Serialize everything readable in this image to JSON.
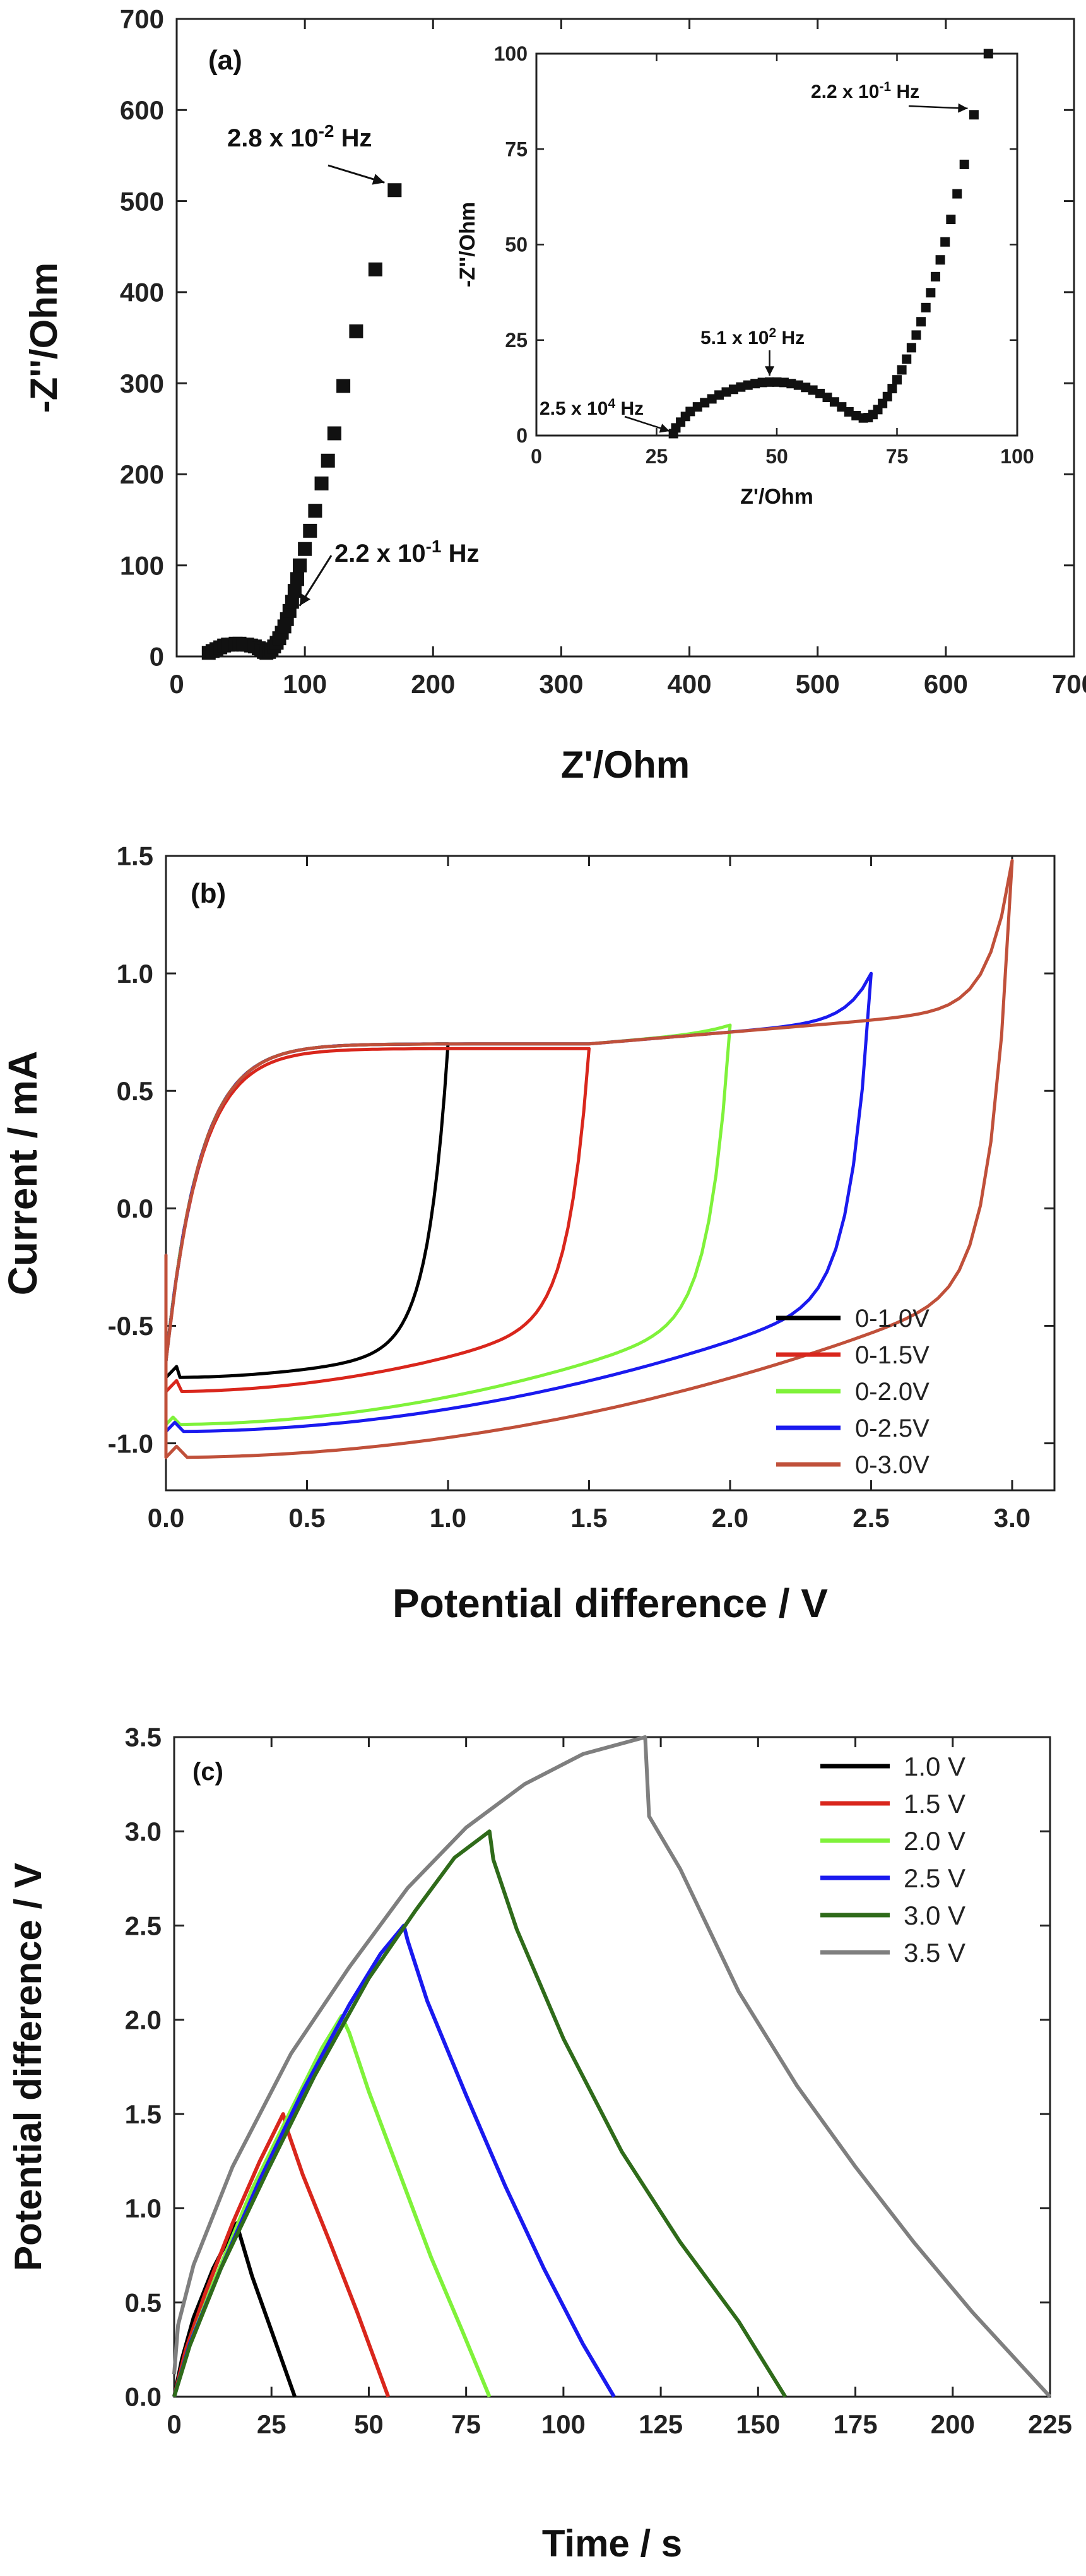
{
  "chart_data": [
    {
      "id": "a",
      "type": "scatter",
      "panel_label": "(a)",
      "xlabel": "Z'/Ohm",
      "ylabel": "-Z''/Ohm",
      "xlim": [
        0,
        700
      ],
      "ylim": [
        0,
        700
      ],
      "xticks": [
        "0",
        "100",
        "200",
        "300",
        "400",
        "500",
        "600",
        "700"
      ],
      "yticks": [
        "0",
        "100",
        "200",
        "300",
        "400",
        "500",
        "600",
        "700"
      ],
      "marker": "square",
      "points": [
        [
          25,
          4
        ],
        [
          28,
          6
        ],
        [
          31,
          8
        ],
        [
          34,
          10
        ],
        [
          37,
          12
        ],
        [
          40,
          13
        ],
        [
          43,
          13
        ],
        [
          46,
          14
        ],
        [
          49,
          14
        ],
        [
          52,
          13
        ],
        [
          55,
          13
        ],
        [
          58,
          12
        ],
        [
          61,
          11
        ],
        [
          64,
          9
        ],
        [
          66,
          7
        ],
        [
          68,
          5
        ],
        [
          70,
          4
        ],
        [
          72,
          5
        ],
        [
          74,
          8
        ],
        [
          76,
          11
        ],
        [
          78,
          15
        ],
        [
          80,
          20
        ],
        [
          82,
          26
        ],
        [
          84,
          33
        ],
        [
          86,
          41
        ],
        [
          88,
          50
        ],
        [
          90,
          60
        ],
        [
          92,
          72
        ],
        [
          94,
          85
        ],
        [
          96,
          100
        ],
        [
          100,
          118
        ],
        [
          104,
          138
        ],
        [
          108,
          160
        ],
        [
          113,
          190
        ],
        [
          118,
          215
        ],
        [
          123,
          245
        ],
        [
          130,
          297
        ],
        [
          140,
          357
        ],
        [
          155,
          425
        ],
        [
          170,
          512
        ]
      ],
      "annotations": [
        {
          "text": "2.8 x 10",
          "sup": "-2",
          "tail": " Hz",
          "point": [
            170,
            512
          ]
        },
        {
          "text": "2.2 x 10",
          "sup": "-1",
          "tail": " Hz",
          "point": [
            88,
            50
          ]
        }
      ],
      "inset": {
        "type": "scatter",
        "xlabel": "Z'/Ohm",
        "ylabel": "-Z''/Ohm",
        "xlim": [
          0,
          100
        ],
        "ylim": [
          0,
          100
        ],
        "xticks": [
          "0",
          "25",
          "50",
          "75",
          "100"
        ],
        "yticks": [
          "0",
          "25",
          "50",
          "75",
          "100"
        ],
        "points": [
          [
            28.5,
            0.5
          ],
          [
            29,
            2
          ],
          [
            30,
            3.5
          ],
          [
            31,
            5
          ],
          [
            32,
            6.3
          ],
          [
            33.5,
            7.5
          ],
          [
            35,
            8.6
          ],
          [
            36.5,
            9.6
          ],
          [
            38,
            10.6
          ],
          [
            39.5,
            11.4
          ],
          [
            41,
            12.1
          ],
          [
            42.5,
            12.7
          ],
          [
            44,
            13.2
          ],
          [
            45.5,
            13.6
          ],
          [
            47,
            13.9
          ],
          [
            48.5,
            14.0
          ],
          [
            50,
            14.0
          ],
          [
            51.5,
            13.9
          ],
          [
            53,
            13.6
          ],
          [
            54.5,
            13.2
          ],
          [
            56,
            12.6
          ],
          [
            57.5,
            11.9
          ],
          [
            59,
            11.0
          ],
          [
            60.5,
            10.0
          ],
          [
            62,
            8.8
          ],
          [
            63.5,
            7.5
          ],
          [
            65,
            6.2
          ],
          [
            66.5,
            5.2
          ],
          [
            68,
            4.6
          ],
          [
            69,
            4.7
          ],
          [
            70,
            5.5
          ],
          [
            71,
            6.8
          ],
          [
            72,
            8.4
          ],
          [
            73,
            10.2
          ],
          [
            74,
            12.3
          ],
          [
            75,
            14.6
          ],
          [
            76,
            17.2
          ],
          [
            77,
            20.0
          ],
          [
            78,
            23.0
          ],
          [
            79,
            26.3
          ],
          [
            80,
            29.8
          ],
          [
            81,
            33.5
          ],
          [
            82,
            37.4
          ],
          [
            83,
            41.6
          ],
          [
            84,
            46.0
          ],
          [
            85,
            50.7
          ],
          [
            86.2,
            56.6
          ],
          [
            87.5,
            63.3
          ],
          [
            89,
            71
          ],
          [
            91,
            84
          ],
          [
            94,
            100
          ]
        ],
        "annotations": [
          {
            "text": "2.2 x 10",
            "sup": "-1",
            "tail": " Hz",
            "point": [
              91,
              84
            ]
          },
          {
            "text": "5.1 x 10",
            "sup": "2",
            "tail": " Hz",
            "point": [
              48.5,
              14.0
            ]
          },
          {
            "text": "2.5 x 10",
            "sup": "4",
            "tail": " Hz",
            "point": [
              28.5,
              0.5
            ]
          }
        ]
      }
    },
    {
      "id": "b",
      "type": "line",
      "panel_label": "(b)",
      "xlabel": "Potential difference / V",
      "ylabel": "Current / mA",
      "xlim": [
        0,
        3.15
      ],
      "ylim": [
        -1.2,
        1.5
      ],
      "xticks": [
        "0.0",
        "0.5",
        "1.0",
        "1.5",
        "2.0",
        "2.5",
        "3.0"
      ],
      "yticks": [
        "-1.0",
        "-0.5",
        "0.0",
        "0.5",
        "1.0",
        "1.5"
      ],
      "legend_position": "bottom-right",
      "series": [
        {
          "name": "0-1.0V",
          "color": "#000000",
          "vmax": 1.0,
          "ipeak": 0.7,
          "ineg": -0.72,
          "irev": -0.58
        },
        {
          "name": "0-1.5V",
          "color": "#d9261c",
          "vmax": 1.5,
          "ipeak": 0.68,
          "ineg": -0.78,
          "irev": -0.45
        },
        {
          "name": "0-2.0V",
          "color": "#7ff23a",
          "vmax": 2.0,
          "ipeak": 0.78,
          "ineg": -0.92,
          "irev": -0.45
        },
        {
          "name": "0-2.5V",
          "color": "#1a1aef",
          "vmax": 2.5,
          "ipeak": 1.0,
          "ineg": -0.95,
          "irev": -0.35
        },
        {
          "name": "0-3.0V",
          "color": "#c0503a",
          "vmax": 3.0,
          "ipeak": 1.48,
          "ineg": -1.06,
          "irev": -0.3
        }
      ]
    },
    {
      "id": "c",
      "type": "line",
      "panel_label": "(c)",
      "xlabel": "Time / s",
      "ylabel": "Potential difference  / V",
      "xlim": [
        0,
        225
      ],
      "ylim": [
        0,
        3.5
      ],
      "xticks": [
        "0",
        "25",
        "50",
        "75",
        "100",
        "125",
        "150",
        "175",
        "200",
        "225"
      ],
      "yticks": [
        "0.0",
        "0.5",
        "1.0",
        "1.5",
        "2.0",
        "2.5",
        "3.0",
        "3.5"
      ],
      "legend_position": "top-right",
      "series": [
        {
          "name": "1.0 V",
          "color": "#000000",
          "points": [
            [
              0,
              0
            ],
            [
              2,
              0.2
            ],
            [
              5,
              0.42
            ],
            [
              10,
              0.68
            ],
            [
              16,
              0.92
            ],
            [
              17,
              0.85
            ],
            [
              20,
              0.64
            ],
            [
              25,
              0.35
            ],
            [
              31,
              0
            ]
          ]
        },
        {
          "name": "1.5 V",
          "color": "#d9261c",
          "points": [
            [
              0,
              0
            ],
            [
              3,
              0.25
            ],
            [
              8,
              0.55
            ],
            [
              15,
              0.92
            ],
            [
              22,
              1.25
            ],
            [
              28,
              1.5
            ],
            [
              29,
              1.42
            ],
            [
              33,
              1.18
            ],
            [
              40,
              0.82
            ],
            [
              47,
              0.45
            ],
            [
              55,
              0
            ]
          ]
        },
        {
          "name": "2.0 V",
          "color": "#7ff23a",
          "points": [
            [
              0,
              0
            ],
            [
              4,
              0.28
            ],
            [
              10,
              0.6
            ],
            [
              20,
              1.1
            ],
            [
              30,
              1.52
            ],
            [
              38,
              1.85
            ],
            [
              43,
              2.02
            ],
            [
              45,
              1.93
            ],
            [
              50,
              1.62
            ],
            [
              58,
              1.18
            ],
            [
              66,
              0.74
            ],
            [
              74,
              0.35
            ],
            [
              81,
              0
            ]
          ]
        },
        {
          "name": "2.5 V",
          "color": "#1a1aef",
          "points": [
            [
              0,
              0
            ],
            [
              4,
              0.28
            ],
            [
              12,
              0.68
            ],
            [
              22,
              1.15
            ],
            [
              33,
              1.62
            ],
            [
              45,
              2.08
            ],
            [
              53,
              2.35
            ],
            [
              59,
              2.5
            ],
            [
              60,
              2.42
            ],
            [
              65,
              2.1
            ],
            [
              75,
              1.6
            ],
            [
              85,
              1.12
            ],
            [
              95,
              0.68
            ],
            [
              105,
              0.28
            ],
            [
              113,
              0
            ]
          ]
        },
        {
          "name": "3.0 V",
          "color": "#2f6b1a",
          "points": [
            [
              0,
              0
            ],
            [
              4,
              0.27
            ],
            [
              12,
              0.68
            ],
            [
              24,
              1.2
            ],
            [
              36,
              1.7
            ],
            [
              50,
              2.22
            ],
            [
              62,
              2.58
            ],
            [
              72,
              2.86
            ],
            [
              81,
              3.0
            ],
            [
              82,
              2.85
            ],
            [
              88,
              2.48
            ],
            [
              100,
              1.9
            ],
            [
              115,
              1.3
            ],
            [
              130,
              0.82
            ],
            [
              145,
              0.4
            ],
            [
              157,
              0
            ]
          ]
        },
        {
          "name": "3.5 V",
          "color": "#7f7f7f",
          "points": [
            [
              0,
              0.12
            ],
            [
              1,
              0.38
            ],
            [
              5,
              0.7
            ],
            [
              15,
              1.22
            ],
            [
              30,
              1.82
            ],
            [
              45,
              2.28
            ],
            [
              60,
              2.7
            ],
            [
              75,
              3.02
            ],
            [
              90,
              3.25
            ],
            [
              105,
              3.41
            ],
            [
              121,
              3.5
            ],
            [
              122,
              3.08
            ],
            [
              130,
              2.8
            ],
            [
              145,
              2.15
            ],
            [
              160,
              1.65
            ],
            [
              175,
              1.22
            ],
            [
              190,
              0.82
            ],
            [
              205,
              0.45
            ],
            [
              225,
              0
            ]
          ]
        }
      ]
    }
  ]
}
